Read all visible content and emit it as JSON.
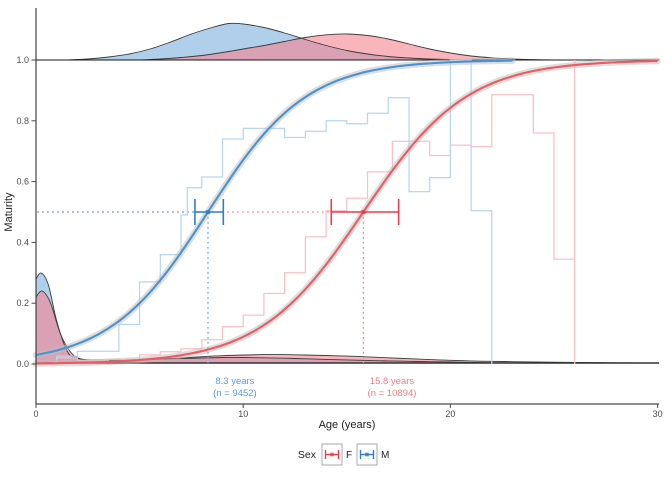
{
  "chart_data": {
    "type": "line",
    "title": "",
    "xlabel": "Age (years)",
    "ylabel": "Maturity",
    "xlim": [
      0,
      30
    ],
    "ylim": [
      0,
      1
    ],
    "x_ticks": [
      0,
      10,
      20,
      30
    ],
    "x_tick_labels": [
      "0",
      "10",
      "20",
      "30"
    ],
    "y_ticks": [
      0,
      0.2,
      0.4,
      0.6,
      0.8,
      1.0
    ],
    "y_tick_labels": [
      "0.0",
      "0.2",
      "0.4",
      "0.6",
      "0.8",
      "1.0"
    ],
    "legend": {
      "title": "Sex",
      "entries": [
        {
          "label": "F",
          "color": "#e83f4e"
        },
        {
          "label": "M",
          "color": "#2e7fc2"
        }
      ]
    },
    "series": [
      {
        "name": "M fitted ogive",
        "kind": "logistic",
        "midpoint": 8.3,
        "slope": 0.42,
        "range": [
          0,
          23
        ],
        "color": "#4a92d1"
      },
      {
        "name": "F fitted ogive",
        "kind": "logistic",
        "midpoint": 15.8,
        "slope": 0.4,
        "range": [
          0,
          30
        ],
        "color": "#f0595f"
      },
      {
        "name": "M empirical proportion",
        "kind": "step",
        "color": "#b7d6ef",
        "points": [
          [
            0,
            0
          ],
          [
            1,
            0.026
          ],
          [
            2,
            0.042
          ],
          [
            4,
            0.13
          ],
          [
            5,
            0.27
          ],
          [
            6,
            0.36
          ],
          [
            7,
            0.49
          ],
          [
            7.3,
            0.58
          ],
          [
            8,
            0.615
          ],
          [
            9,
            0.74
          ],
          [
            10,
            0.775
          ],
          [
            12,
            0.745
          ],
          [
            13,
            0.765
          ],
          [
            14,
            0.8
          ],
          [
            15,
            0.79
          ],
          [
            16,
            0.825
          ],
          [
            17,
            0.876
          ],
          [
            18,
            0.567
          ],
          [
            19,
            0.613
          ],
          [
            20,
            1.0
          ],
          [
            21,
            0.504
          ],
          [
            22,
            0
          ]
        ]
      },
      {
        "name": "F empirical proportion",
        "kind": "step",
        "color": "#f9c0c7",
        "points": [
          [
            0.8,
            0.005
          ],
          [
            1,
            0.02
          ],
          [
            2,
            0.012
          ],
          [
            3.5,
            0.015
          ],
          [
            5,
            0.03
          ],
          [
            6,
            0.04
          ],
          [
            7,
            0.05
          ],
          [
            8,
            0.08
          ],
          [
            9,
            0.123
          ],
          [
            10,
            0.161
          ],
          [
            11,
            0.232
          ],
          [
            12,
            0.3
          ],
          [
            13,
            0.418
          ],
          [
            14,
            0.504
          ],
          [
            15,
            0.545
          ],
          [
            16,
            0.632
          ],
          [
            17.2,
            0.733
          ],
          [
            19,
            0.686
          ],
          [
            20,
            0.72
          ],
          [
            21,
            0.715
          ],
          [
            22,
            0.886
          ],
          [
            24,
            0.76
          ],
          [
            25,
            0.345
          ],
          [
            26,
            1.0
          ],
          [
            26,
            0
          ]
        ]
      }
    ],
    "a50": [
      {
        "sex": "M",
        "age": 8.3,
        "n": 9452,
        "label_line1": "8.3 years",
        "label_line2": "(n = 9452)",
        "ci": [
          7.67,
          9.04
        ],
        "label_x": 9.6,
        "strong_color": "#2e7fc2",
        "dotted_color": "#7aa7d8",
        "text_color": "#5b9bd8"
      },
      {
        "sex": "F",
        "age": 15.8,
        "n": 10894,
        "label_line1": "15.8 years",
        "label_line2": "(n = 10894)",
        "ci": [
          14.25,
          17.5
        ],
        "label_x": 17.18,
        "strong_color": "#e83f4e",
        "dotted_color": "#f08a92",
        "text_color": "#f27c88"
      }
    ],
    "densities": {
      "top_baseline_value": 1.0,
      "bottom_baseline_value": 0.0,
      "top_m": [
        [
          1.5,
          0
        ],
        [
          2.5,
          1
        ],
        [
          3.5,
          3
        ],
        [
          4.5,
          6
        ],
        [
          5.5,
          11
        ],
        [
          6.5,
          18
        ],
        [
          7.5,
          26
        ],
        [
          8.5,
          32.5
        ],
        [
          9.3,
          36.5
        ],
        [
          10,
          36
        ],
        [
          11,
          32.5
        ],
        [
          12,
          27
        ],
        [
          13,
          20.5
        ],
        [
          14,
          14.5
        ],
        [
          15,
          9.5
        ],
        [
          16,
          6
        ],
        [
          17,
          3.5
        ],
        [
          18,
          2
        ],
        [
          19,
          1
        ],
        [
          20,
          0.5
        ],
        [
          21,
          0
        ]
      ],
      "top_f": [
        [
          5,
          0
        ],
        [
          6,
          1
        ],
        [
          7,
          2.5
        ],
        [
          8,
          4.5
        ],
        [
          9,
          7.5
        ],
        [
          10,
          11
        ],
        [
          11,
          14.5
        ],
        [
          12,
          18.5
        ],
        [
          13,
          22.5
        ],
        [
          14,
          25.2
        ],
        [
          15,
          26
        ],
        [
          16,
          24.5
        ],
        [
          17,
          21
        ],
        [
          18,
          16
        ],
        [
          19,
          11
        ],
        [
          20,
          7
        ],
        [
          21,
          4
        ],
        [
          22,
          2.2
        ],
        [
          23,
          1
        ],
        [
          24,
          0.4
        ],
        [
          25,
          0
        ]
      ],
      "bottom_m": [
        [
          0,
          84
        ],
        [
          0.25,
          90
        ],
        [
          0.6,
          78
        ],
        [
          1,
          42
        ],
        [
          1.5,
          12
        ],
        [
          2,
          4.5
        ],
        [
          3,
          3
        ],
        [
          4,
          3
        ],
        [
          5,
          3.5
        ],
        [
          6,
          4
        ],
        [
          7,
          4.5
        ],
        [
          8,
          5
        ],
        [
          9,
          5.5
        ],
        [
          10,
          5.5
        ],
        [
          11,
          5.2
        ],
        [
          12,
          4.8
        ],
        [
          13,
          4.2
        ],
        [
          14,
          3.6
        ],
        [
          15,
          3.1
        ],
        [
          16,
          2.6
        ],
        [
          17,
          2.1
        ],
        [
          18,
          1.7
        ],
        [
          19,
          1.3
        ],
        [
          20,
          1
        ],
        [
          21,
          0.6
        ],
        [
          22,
          0.2
        ],
        [
          22.5,
          0
        ]
      ],
      "bottom_f": [
        [
          0,
          66
        ],
        [
          0.3,
          72
        ],
        [
          0.7,
          60
        ],
        [
          1.2,
          28
        ],
        [
          1.8,
          8
        ],
        [
          2.5,
          3
        ],
        [
          3.5,
          2.5
        ],
        [
          5,
          3
        ],
        [
          6,
          4
        ],
        [
          7,
          5
        ],
        [
          8,
          6.3
        ],
        [
          9,
          7.3
        ],
        [
          10,
          8
        ],
        [
          11,
          8.4
        ],
        [
          12,
          8.4
        ],
        [
          13,
          8
        ],
        [
          14,
          7.5
        ],
        [
          15,
          6.9
        ],
        [
          16,
          6.1
        ],
        [
          17,
          5.2
        ],
        [
          18,
          4.3
        ],
        [
          19,
          3.4
        ],
        [
          20,
          2.7
        ],
        [
          21,
          2.1
        ],
        [
          22,
          1.7
        ],
        [
          23,
          1.3
        ],
        [
          24,
          1
        ],
        [
          25,
          0.8
        ],
        [
          26,
          0.6
        ],
        [
          27,
          0.4
        ],
        [
          28,
          0.25
        ],
        [
          29,
          0.1
        ],
        [
          30,
          0
        ]
      ]
    },
    "colors": {
      "ribbon": "#bdbdbd",
      "density_m_fill": "#7fb2dd",
      "density_f_fill": "#f6808c",
      "density_outline": "#3d3d3d",
      "baseline_top": "#1a1a1a",
      "baseline_bottom": "#333333",
      "axis_line": "#4a4a4a",
      "tick_text": "#4d4d4d",
      "title_text": "#1f1f1f",
      "legend_border": "#a8a8a8"
    }
  }
}
